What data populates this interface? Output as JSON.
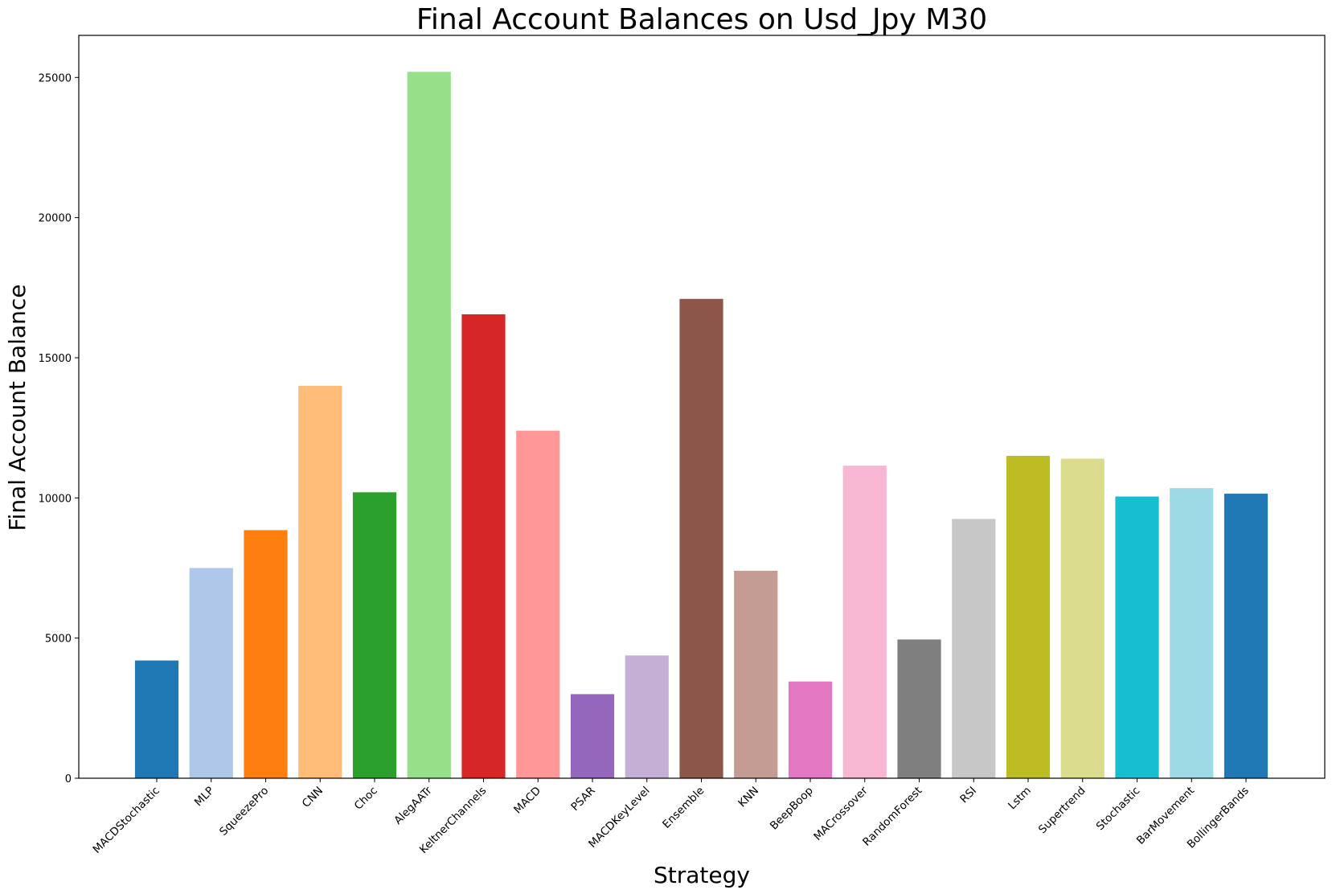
{
  "chart_data": {
    "type": "bar",
    "title": "Final Account Balances on Usd_Jpy M30",
    "xlabel": "Strategy",
    "ylabel": "Final Account Balance",
    "ylim": [
      0,
      26500
    ],
    "yticks": [
      0,
      5000,
      10000,
      15000,
      20000,
      25000
    ],
    "grid": false,
    "categories": [
      "MACDStochastic",
      "MLP",
      "SqueezePro",
      "CNN",
      "Choc",
      "AlegAATr",
      "KeltnerChannels",
      "MACD",
      "PSAR",
      "MACDKeyLevel",
      "Ensemble",
      "KNN",
      "BeepBoop",
      "MACrossover",
      "RandomForest",
      "RSI",
      "Lstm",
      "Supertrend",
      "Stochastic",
      "BarMovement",
      "BollingerBands"
    ],
    "values": [
      4200,
      7500,
      8850,
      14000,
      10200,
      25200,
      16550,
      12400,
      3000,
      4380,
      17100,
      7400,
      3450,
      11150,
      4950,
      9250,
      11500,
      11400,
      10050,
      10350,
      10150
    ],
    "colors": [
      "#1f77b4",
      "#aec7e8",
      "#ff7f0e",
      "#ffbb78",
      "#2ca02c",
      "#98df8a",
      "#d62728",
      "#ff9896",
      "#9467bd",
      "#c5b0d5",
      "#8c564b",
      "#c49c94",
      "#e377c2",
      "#f7b6d2",
      "#7f7f7f",
      "#c7c7c7",
      "#bcbd22",
      "#dbdb8d",
      "#17becf",
      "#9edae5",
      "#1f77b4"
    ]
  }
}
